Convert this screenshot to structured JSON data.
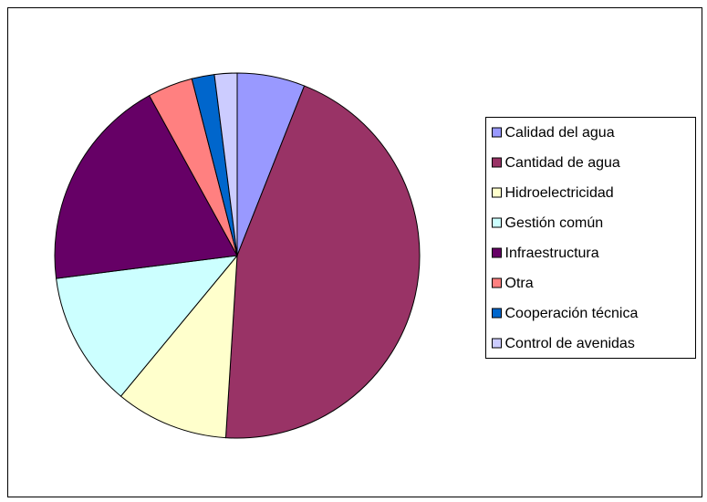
{
  "chart_data": {
    "type": "pie",
    "categories": [
      "Calidad del agua",
      "Cantidad de agua",
      "Hidroelectricidad",
      "Gestión común",
      "Infraestructura",
      "Otra",
      "Cooperación técnica",
      "Control de avenidas"
    ],
    "values": [
      6,
      45,
      10,
      12,
      19,
      4,
      2,
      2
    ],
    "colors": [
      "#9999ff",
      "#993366",
      "#ffffcc",
      "#ccffff",
      "#660066",
      "#ff8080",
      "#0066cc",
      "#ccccff"
    ],
    "legend": "right"
  }
}
